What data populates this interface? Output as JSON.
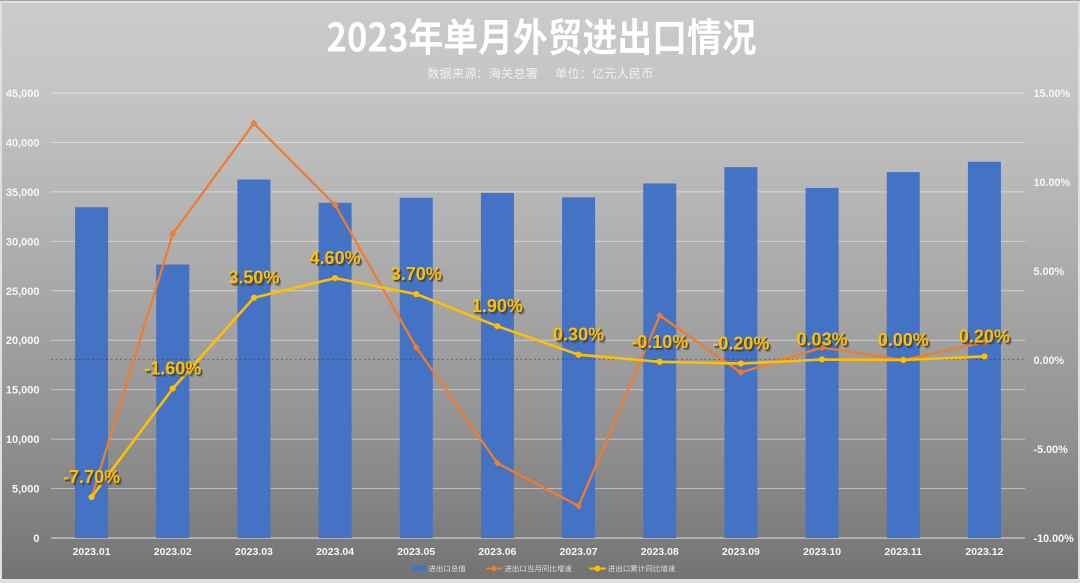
{
  "title": "2023年单月外贸进出口情况",
  "subtitle": {
    "source_label": "数据来源：海关总署",
    "unit_label": "单位：亿元人民币"
  },
  "chart_data": {
    "type": "combo",
    "categories": [
      "2023.01",
      "2023.02",
      "2023.03",
      "2023.04",
      "2023.05",
      "2023.06",
      "2023.07",
      "2023.08",
      "2023.09",
      "2023.10",
      "2023.11",
      "2023.12"
    ],
    "series": [
      {
        "name": "进出口总值",
        "type": "bar",
        "axis": "left",
        "color": "#4472C4",
        "values": [
          33450,
          27650,
          36250,
          33900,
          34400,
          34900,
          34450,
          35850,
          37500,
          35400,
          37000,
          38050
        ]
      },
      {
        "name": "进出口当月同比增速",
        "type": "line",
        "axis": "right",
        "color": "#ED7D31",
        "marker": "diamond",
        "values": [
          -7.7,
          7.1,
          13.3,
          8.7,
          0.7,
          -5.8,
          -8.2,
          2.5,
          -0.7,
          0.7,
          0.0,
          1.0
        ]
      },
      {
        "name": "进出口累计同比增速",
        "type": "line",
        "axis": "right",
        "color": "#FFC000",
        "marker": "circle",
        "values": [
          -7.7,
          -1.6,
          3.5,
          4.6,
          3.7,
          1.9,
          0.3,
          -0.1,
          -0.2,
          0.03,
          0.0,
          0.2
        ],
        "data_labels": [
          "-7.70%",
          "-1.60%",
          "3.50%",
          "4.60%",
          "3.70%",
          "1.90%",
          "0.30%",
          "-0.10%",
          "-0.20%",
          "0.03%",
          "0.00%",
          "0.20%"
        ]
      }
    ],
    "left_axis": {
      "min": 0,
      "max": 45000,
      "step": 5000,
      "tick_labels": [
        "45,000",
        "40,000",
        "35,000",
        "30,000",
        "25,000",
        "20,000",
        "15,000",
        "10,000",
        "5,000",
        "0"
      ]
    },
    "right_axis": {
      "min": -10,
      "max": 15,
      "step": 5,
      "tick_labels": [
        "15.00%",
        "10.00%",
        "5.00%",
        "0.00%",
        "-5.00%",
        "-10.00%"
      ]
    },
    "grid": true,
    "legend_position": "bottom",
    "zero_line": {
      "value": 0,
      "color": "#C00000",
      "style": "dotted"
    }
  },
  "legend": {
    "items": [
      {
        "label": "进出口总值",
        "swatch": "bar",
        "color": "#4472C4"
      },
      {
        "label": "进出口当月同比增速",
        "swatch": "line-diamond",
        "color": "#ED7D31"
      },
      {
        "label": "进出口累计同比增速",
        "swatch": "line-circle",
        "color": "#FFC000"
      }
    ]
  },
  "colors": {
    "bar": "#4472C4",
    "monthly_line": "#ED7D31",
    "cumulative_line": "#FFC000",
    "data_label": "#FFC000",
    "zero_line": "#C00000",
    "axis_text": "#f7f7f7",
    "title_text": "#ffffff",
    "background_top": "#cbcbcb",
    "background_bottom": "#737373"
  }
}
